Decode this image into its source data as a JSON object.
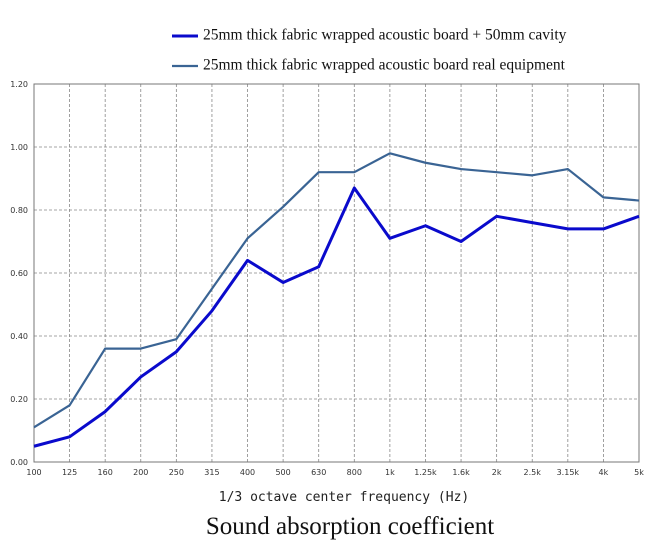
{
  "chart_data": {
    "type": "line",
    "title": "Sound absorption coefficient",
    "x_label": "1/3 octave center frequency (Hz)",
    "categories": [
      "100",
      "125",
      "160",
      "200",
      "250",
      "315",
      "400",
      "500",
      "630",
      "800",
      "1k",
      "1.25k",
      "1.6k",
      "2k",
      "2.5k",
      "3.15k",
      "4k",
      "5k"
    ],
    "series": [
      {
        "name": "25mm thick fabric wrapped acoustic board + 50mm cavity",
        "color": "#0a0acc",
        "values": [
          0.05,
          0.08,
          0.16,
          0.27,
          0.35,
          0.48,
          0.64,
          0.57,
          0.62,
          0.87,
          0.71,
          0.75,
          0.7,
          0.78,
          0.76,
          0.74,
          0.74,
          0.78
        ]
      },
      {
        "name": "25mm thick fabric wrapped acoustic board real equipment",
        "color": "#3a6494",
        "values": [
          0.11,
          0.18,
          0.36,
          0.36,
          0.39,
          0.55,
          0.71,
          0.81,
          0.92,
          0.92,
          0.98,
          0.95,
          0.93,
          0.92,
          0.91,
          0.93,
          0.84,
          0.83
        ]
      }
    ],
    "ylim": [
      0,
      1.2
    ],
    "yticks": [
      {
        "value": 0,
        "label": "0.00"
      },
      {
        "value": 0.2,
        "label": "0.20"
      },
      {
        "value": 0.4,
        "label": "0.40"
      },
      {
        "value": 0.6,
        "label": "0.60"
      },
      {
        "value": 0.8,
        "label": "0.80"
      },
      {
        "value": 1.0,
        "label": "1.00"
      },
      {
        "value": 1.2,
        "label": "1.20"
      }
    ],
    "grid": true
  }
}
